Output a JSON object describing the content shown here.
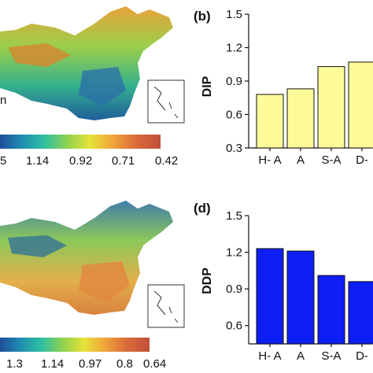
{
  "map_top": {
    "colorbar_ticks": [
      "5",
      "1.14",
      "0.92",
      "0.71",
      "0.42"
    ],
    "fragment_text": "n"
  },
  "map_bottom": {
    "colorbar_ticks": [
      "1.3",
      "1.14",
      "0.97",
      "0.8",
      "0.64"
    ]
  },
  "colors": {
    "colorbar_stops": [
      "#1f4e9c",
      "#1f8fb0",
      "#2fc0a0",
      "#8fd24f",
      "#e6e23a",
      "#f0a63a",
      "#d96a3a",
      "#c0503a"
    ],
    "top_bar_fill": "#fdfa9a",
    "bottom_bar_fill": "#0d1ff5"
  },
  "chart_data": [
    {
      "type": "bar",
      "panel_label": "(b)",
      "categories": [
        "H- A",
        "A",
        "S-A",
        "D-"
      ],
      "values": [
        0.78,
        0.83,
        1.03,
        1.07
      ],
      "ylabel": "DIP",
      "ylim": [
        0.3,
        1.5
      ],
      "yticks": [
        "0.3",
        "0.6",
        "0.9",
        "1.2",
        "1.5"
      ]
    },
    {
      "type": "bar",
      "panel_label": "(d)",
      "categories": [
        "H- A",
        "A",
        "S-A",
        "D-"
      ],
      "values": [
        1.23,
        1.21,
        1.01,
        0.96
      ],
      "ylabel": "DDP",
      "ylim": [
        0.45,
        1.5
      ],
      "yticks": [
        "0.6",
        "0.9",
        "1.2",
        "1.5"
      ]
    }
  ]
}
